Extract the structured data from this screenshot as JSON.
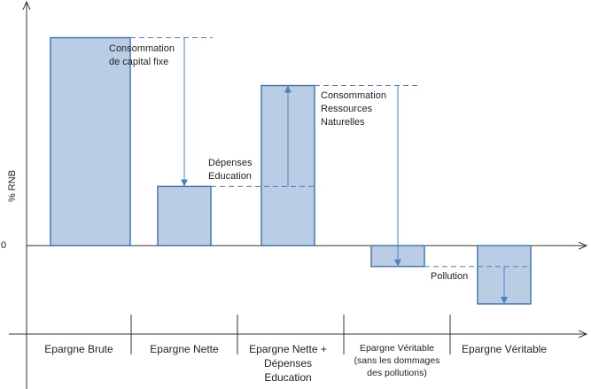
{
  "chart_data": {
    "type": "waterfall-concept",
    "y_label": "% RNB",
    "categories": [
      "Epargne Brute",
      "Epargne Nette",
      "Epargne Nette + Dépenses Education",
      "Epargne Véritable (sans les dommages des pollutions)",
      "Epargne Véritable"
    ],
    "values": [
      10,
      2.85,
      7.7,
      -1,
      -2.8
    ],
    "color": "#b9cde5",
    "ylim": [
      -4.25,
      11.6
    ],
    "yticks": [
      0
    ],
    "annotations": [
      {
        "text": [
          "Consommation",
          "de capital fixe"
        ]
      },
      {
        "text": [
          "Dépenses",
          "Education"
        ]
      },
      {
        "text": [
          "Consommation",
          "Ressources",
          "Naturelles"
        ]
      },
      {
        "text": [
          "Pollution"
        ]
      }
    ]
  }
}
